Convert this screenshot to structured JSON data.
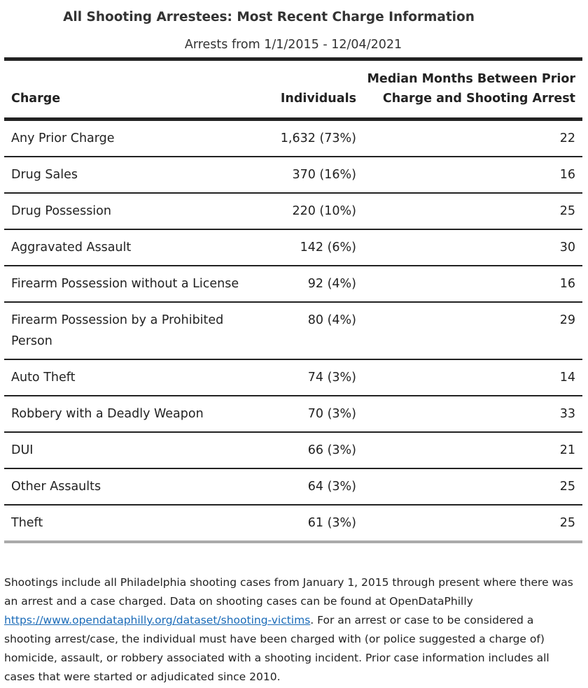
{
  "chart_data": {
    "type": "table",
    "title": "All Shooting Arrestees: Most Recent Charge Information",
    "subtitle": "Arrests from 1/1/2015 - 12/04/2021",
    "columns": [
      "Charge",
      "Individuals",
      "Median Months Between Prior Charge and Shooting Arrest"
    ],
    "rows": [
      {
        "charge": "Any Prior Charge",
        "individuals": "1,632 (73%)",
        "median_months": "22"
      },
      {
        "charge": "Drug Sales",
        "individuals": "370 (16%)",
        "median_months": "16"
      },
      {
        "charge": "Drug Possession",
        "individuals": "220 (10%)",
        "median_months": "25"
      },
      {
        "charge": "Aggravated Assault",
        "individuals": "142 (6%)",
        "median_months": "30"
      },
      {
        "charge": "Firearm Possession without a License",
        "individuals": "92 (4%)",
        "median_months": "16"
      },
      {
        "charge": "Firearm Possession by a Prohibited Person",
        "individuals": "80 (4%)",
        "median_months": "29"
      },
      {
        "charge": "Auto Theft",
        "individuals": "74 (3%)",
        "median_months": "14"
      },
      {
        "charge": "Robbery with a Deadly Weapon",
        "individuals": "70 (3%)",
        "median_months": "33"
      },
      {
        "charge": "DUI",
        "individuals": "66 (3%)",
        "median_months": "21"
      },
      {
        "charge": "Other Assaults",
        "individuals": "64 (3%)",
        "median_months": "25"
      },
      {
        "charge": "Theft",
        "individuals": "61 (3%)",
        "median_months": "25"
      }
    ]
  },
  "footnote": {
    "text_before_link": "Shootings include all Philadelphia shooting cases from January 1, 2015 through present where there was an arrest and a case charged. Data on shooting cases can be found at OpenDataPhilly ",
    "link_text": "https://www.opendataphilly.org/dataset/shooting-victims",
    "text_after_link": ". For an arrest or case to be considered a shooting arrest/case, the individual must have been charged with (or police suggested a charge of) homicide, assault, or robbery associated with a shooting incident. Prior case information includes all cases that were started or adjudicated since 2010."
  },
  "colors": {
    "text": "#222222",
    "rule": "#222222",
    "bottom_rule": "#aaaaaa",
    "link": "#1a6bb8"
  }
}
